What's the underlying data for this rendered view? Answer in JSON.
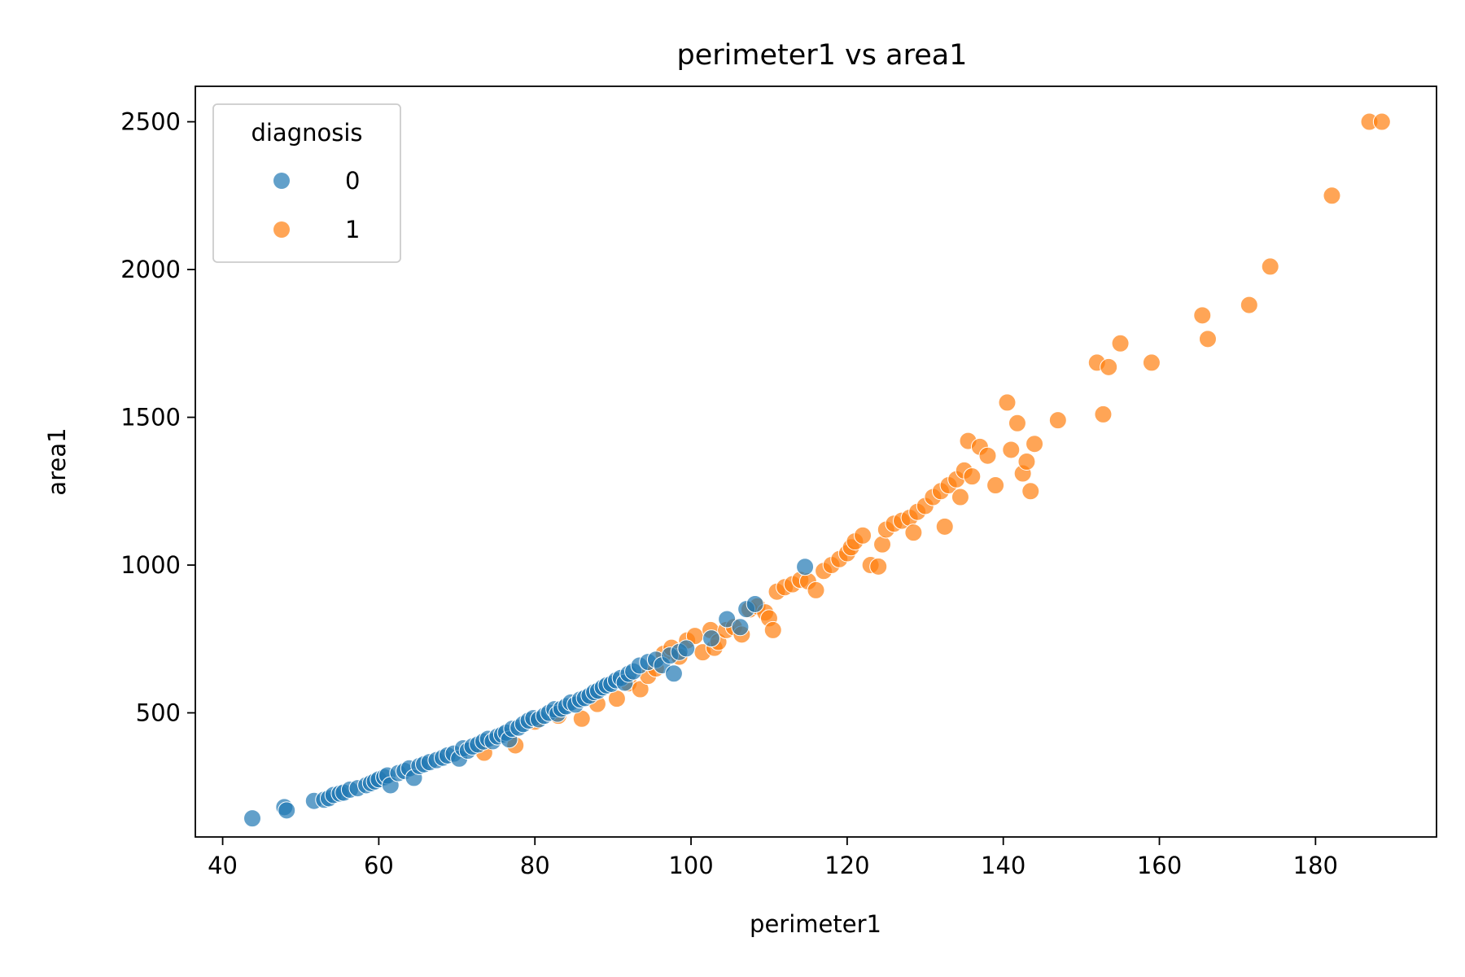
{
  "chart_data": {
    "type": "scatter",
    "title": "perimeter1 vs area1",
    "xlabel": "perimeter1",
    "ylabel": "area1",
    "xlim": [
      36.5,
      195.5
    ],
    "ylim": [
      80,
      2620
    ],
    "xticks": [
      40,
      60,
      80,
      100,
      120,
      140,
      160,
      180
    ],
    "yticks": [
      500,
      1000,
      1500,
      2000,
      2500
    ],
    "grid": false,
    "legend": {
      "title": "diagnosis",
      "placement": "top-left"
    },
    "colors": {
      "0": "#1f77b4",
      "1": "#ff7f0e"
    },
    "series": [
      {
        "name": "0",
        "color": "#1f77b4",
        "points": [
          [
            43.8,
            143
          ],
          [
            47.9,
            181
          ],
          [
            48.2,
            170
          ],
          [
            51.7,
            202
          ],
          [
            53.0,
            206
          ],
          [
            53.6,
            211
          ],
          [
            54.2,
            222
          ],
          [
            55.0,
            227
          ],
          [
            55.5,
            230
          ],
          [
            56.3,
            240
          ],
          [
            57.3,
            245
          ],
          [
            58.4,
            255
          ],
          [
            59.0,
            262
          ],
          [
            59.5,
            268
          ],
          [
            60.0,
            275
          ],
          [
            60.7,
            282
          ],
          [
            61.1,
            288
          ],
          [
            61.5,
            255
          ],
          [
            62.5,
            296
          ],
          [
            63.3,
            303
          ],
          [
            63.9,
            312
          ],
          [
            64.5,
            280
          ],
          [
            65.2,
            320
          ],
          [
            65.8,
            326
          ],
          [
            66.5,
            333
          ],
          [
            67.4,
            340
          ],
          [
            68.2,
            348
          ],
          [
            68.8,
            356
          ],
          [
            69.6,
            362
          ],
          [
            70.3,
            345
          ],
          [
            70.8,
            380
          ],
          [
            71.4,
            372
          ],
          [
            72.0,
            386
          ],
          [
            72.7,
            393
          ],
          [
            73.4,
            403
          ],
          [
            74.0,
            412
          ],
          [
            74.6,
            404
          ],
          [
            75.2,
            420
          ],
          [
            75.8,
            426
          ],
          [
            76.3,
            433
          ],
          [
            76.7,
            410
          ],
          [
            77.1,
            446
          ],
          [
            77.9,
            450
          ],
          [
            78.5,
            462
          ],
          [
            79.2,
            474
          ],
          [
            79.8,
            482
          ],
          [
            80.5,
            478
          ],
          [
            81.2,
            490
          ],
          [
            81.8,
            500
          ],
          [
            82.5,
            512
          ],
          [
            82.9,
            497
          ],
          [
            83.4,
            514
          ],
          [
            84.0,
            522
          ],
          [
            84.6,
            535
          ],
          [
            85.2,
            528
          ],
          [
            85.8,
            545
          ],
          [
            86.4,
            550
          ],
          [
            87.0,
            558
          ],
          [
            87.6,
            570
          ],
          [
            88.1,
            575
          ],
          [
            88.7,
            586
          ],
          [
            89.2,
            593
          ],
          [
            89.8,
            598
          ],
          [
            90.4,
            610
          ],
          [
            91.0,
            618
          ],
          [
            91.5,
            602
          ],
          [
            92.0,
            632
          ],
          [
            92.6,
            640
          ],
          [
            93.4,
            660
          ],
          [
            94.5,
            672
          ],
          [
            95.5,
            680
          ],
          [
            96.3,
            661
          ],
          [
            97.3,
            694
          ],
          [
            97.8,
            633
          ],
          [
            98.5,
            706
          ],
          [
            99.4,
            718
          ],
          [
            102.6,
            752
          ],
          [
            104.6,
            817
          ],
          [
            106.3,
            790
          ],
          [
            107.1,
            851
          ],
          [
            108.2,
            868
          ],
          [
            114.6,
            994
          ]
        ]
      },
      {
        "name": "1",
        "color": "#ff7f0e",
        "points": [
          [
            73.5,
            365
          ],
          [
            77.5,
            390
          ],
          [
            80.0,
            470
          ],
          [
            83.0,
            490
          ],
          [
            86.0,
            480
          ],
          [
            88.0,
            530
          ],
          [
            90.5,
            548
          ],
          [
            92.0,
            600
          ],
          [
            93.5,
            580
          ],
          [
            94.5,
            625
          ],
          [
            95.5,
            650
          ],
          [
            96.5,
            700
          ],
          [
            97.5,
            720
          ],
          [
            98.5,
            690
          ],
          [
            99.5,
            745
          ],
          [
            100.5,
            760
          ],
          [
            101.5,
            705
          ],
          [
            102.5,
            780
          ],
          [
            103.0,
            720
          ],
          [
            103.5,
            740
          ],
          [
            104.5,
            780
          ],
          [
            105.5,
            790
          ],
          [
            106.5,
            765
          ],
          [
            107.5,
            850
          ],
          [
            108.5,
            860
          ],
          [
            109.5,
            840
          ],
          [
            110.0,
            820
          ],
          [
            110.5,
            780
          ],
          [
            111.0,
            910
          ],
          [
            112.0,
            925
          ],
          [
            113.0,
            935
          ],
          [
            114.0,
            950
          ],
          [
            115.0,
            945
          ],
          [
            116.0,
            915
          ],
          [
            117.0,
            980
          ],
          [
            118.0,
            1000
          ],
          [
            119.0,
            1020
          ],
          [
            120.0,
            1040
          ],
          [
            120.5,
            1060
          ],
          [
            121.0,
            1080
          ],
          [
            122.0,
            1100
          ],
          [
            123.0,
            1000
          ],
          [
            124.0,
            995
          ],
          [
            124.5,
            1070
          ],
          [
            125.0,
            1120
          ],
          [
            126.0,
            1140
          ],
          [
            127.0,
            1150
          ],
          [
            128.0,
            1160
          ],
          [
            128.5,
            1110
          ],
          [
            129.0,
            1180
          ],
          [
            130.0,
            1200
          ],
          [
            131.0,
            1230
          ],
          [
            132.0,
            1250
          ],
          [
            132.5,
            1130
          ],
          [
            133.0,
            1270
          ],
          [
            134.0,
            1290
          ],
          [
            134.5,
            1230
          ],
          [
            135.0,
            1320
          ],
          [
            135.5,
            1420
          ],
          [
            136.0,
            1300
          ],
          [
            137.0,
            1400
          ],
          [
            138.0,
            1370
          ],
          [
            139.0,
            1270
          ],
          [
            140.5,
            1550
          ],
          [
            141.0,
            1390
          ],
          [
            141.8,
            1480
          ],
          [
            142.5,
            1310
          ],
          [
            143.0,
            1350
          ],
          [
            143.5,
            1250
          ],
          [
            144.0,
            1410
          ],
          [
            147.0,
            1490
          ],
          [
            152.0,
            1685
          ],
          [
            152.8,
            1510
          ],
          [
            153.5,
            1670
          ],
          [
            155.0,
            1750
          ],
          [
            159.0,
            1685
          ],
          [
            165.5,
            1845
          ],
          [
            166.2,
            1765
          ],
          [
            171.5,
            1880
          ],
          [
            174.2,
            2010
          ],
          [
            182.1,
            2250
          ],
          [
            186.9,
            2500
          ],
          [
            188.5,
            2500
          ]
        ]
      }
    ]
  }
}
